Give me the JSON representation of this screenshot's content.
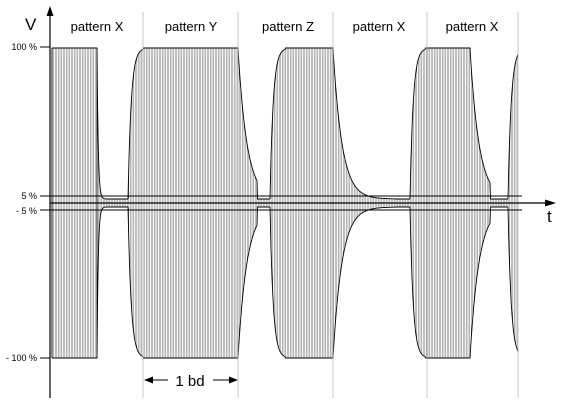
{
  "figure": {
    "y_axis_label": "V",
    "x_axis_label": "t",
    "level_labels": [
      "100 %",
      "5 %",
      "- 5 %",
      "- 100 %"
    ],
    "level_values_percent": [
      100,
      5,
      -5,
      -100
    ],
    "pattern_labels": [
      "pattern X",
      "pattern Y",
      "pattern Z",
      "pattern X",
      "pattern X"
    ],
    "baud_label": "1 bd",
    "colors": {
      "ink": "#000000",
      "carrier": "#7a7a7a",
      "background": "#ffffff"
    }
  }
}
